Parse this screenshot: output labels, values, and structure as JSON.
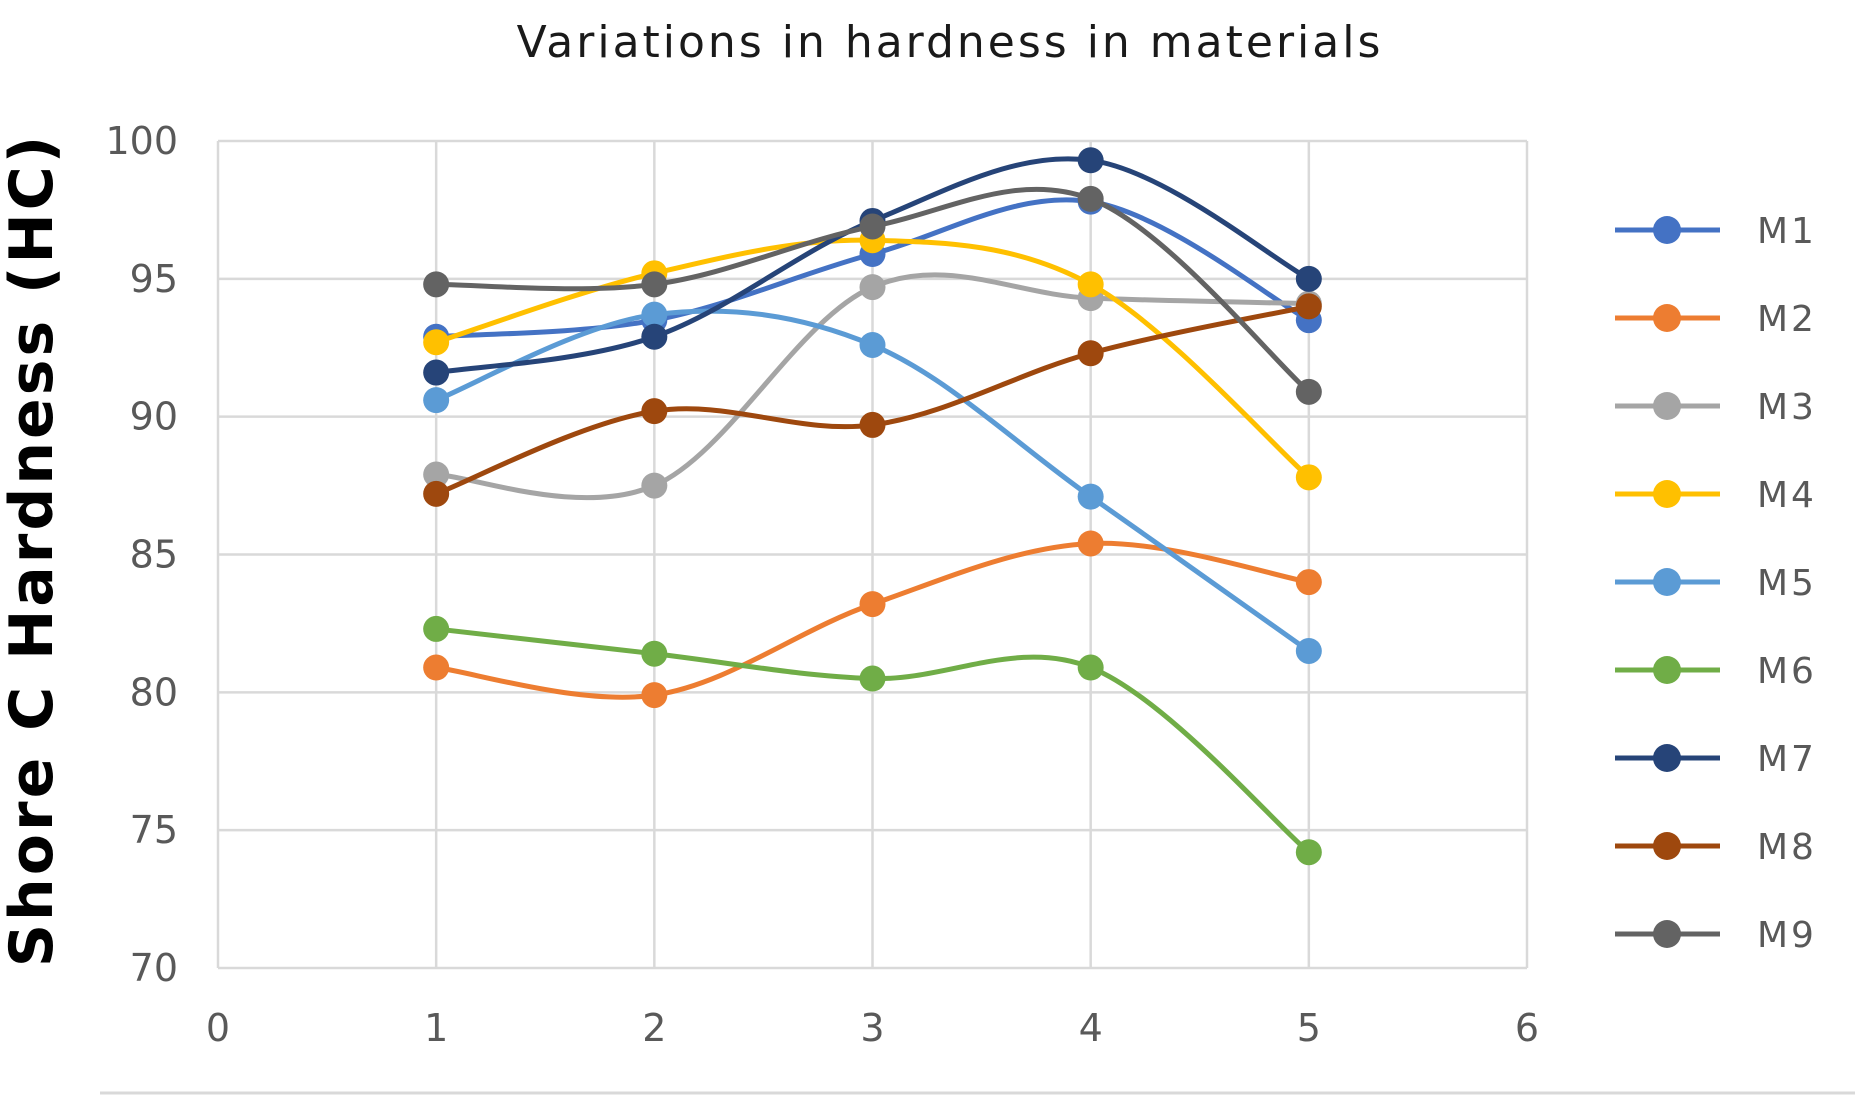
{
  "chart_data": {
    "type": "line",
    "title": "Variations in hardness in materials",
    "xlabel": "",
    "ylabel": "Shore C Hardness (HC)",
    "xlim": [
      0,
      6
    ],
    "ylim": [
      70,
      100
    ],
    "xticks": [
      0,
      1,
      2,
      3,
      4,
      5,
      6
    ],
    "yticks": [
      70,
      75,
      80,
      85,
      90,
      95,
      100
    ],
    "grid": true,
    "smooth": true,
    "legend_position": "right",
    "x": [
      1,
      2,
      3,
      4,
      5
    ],
    "series": [
      {
        "name": "M1",
        "color": "#4472C4",
        "values": [
          92.9,
          93.5,
          95.9,
          97.8,
          93.5
        ]
      },
      {
        "name": "M2",
        "color": "#ED7D31",
        "values": [
          80.9,
          79.9,
          83.2,
          85.4,
          84.0
        ]
      },
      {
        "name": "M3",
        "color": "#A5A5A5",
        "values": [
          87.9,
          87.5,
          94.7,
          94.3,
          94.1
        ]
      },
      {
        "name": "M4",
        "color": "#FFC000",
        "values": [
          92.7,
          95.2,
          96.4,
          94.8,
          87.8
        ]
      },
      {
        "name": "M5",
        "color": "#5B9BD5",
        "values": [
          90.6,
          93.7,
          92.6,
          87.1,
          81.5
        ]
      },
      {
        "name": "M6",
        "color": "#70AD47",
        "values": [
          82.3,
          81.4,
          80.5,
          80.9,
          74.2
        ]
      },
      {
        "name": "M7",
        "color": "#264478",
        "values": [
          91.6,
          92.9,
          97.1,
          99.3,
          95.0
        ]
      },
      {
        "name": "M8",
        "color": "#9E480E",
        "values": [
          87.2,
          90.2,
          89.7,
          92.3,
          94.0
        ]
      },
      {
        "name": "M9",
        "color": "#636363",
        "values": [
          94.8,
          94.8,
          96.9,
          97.9,
          90.9
        ]
      }
    ]
  }
}
